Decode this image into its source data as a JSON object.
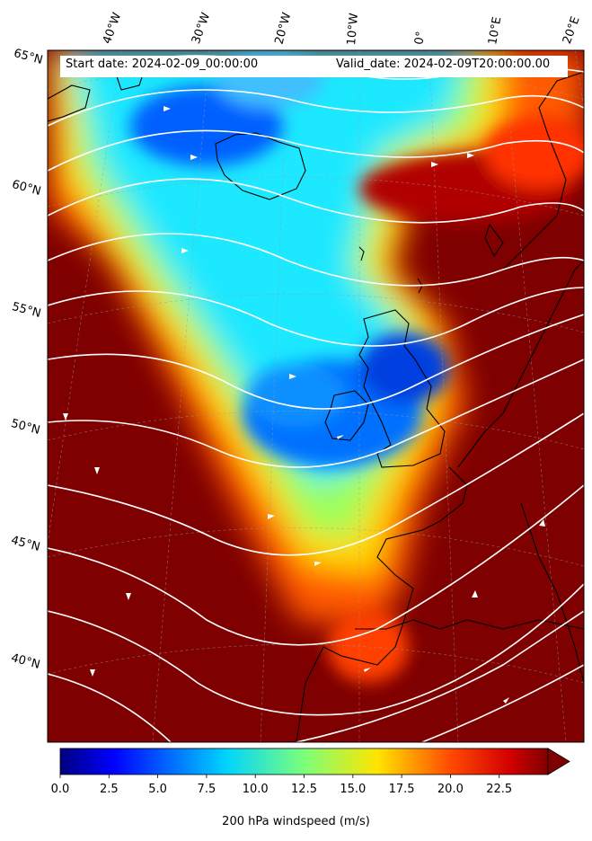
{
  "map": {
    "start_label": "Start date: 2024-02-09_00:00:00",
    "valid_label": "Valid_date: 2024-02-09T20:00:00.00",
    "colorbar_label": "200 hPa windspeed (m/s)",
    "colorbar_ticks": [
      "0.0",
      "2.5",
      "5.0",
      "7.5",
      "10.0",
      "12.5",
      "15.0",
      "17.5",
      "20.0",
      "22.5"
    ],
    "colorbar_range": [
      0,
      25
    ],
    "colormap": "jet",
    "extend": "max",
    "lon_labels": [
      "40°W",
      "30°W",
      "20°W",
      "10°W",
      "0°",
      "10°E",
      "20°E"
    ],
    "lat_labels": [
      "65°N",
      "60°N",
      "55°N",
      "50°N",
      "45°N",
      "40°N"
    ],
    "streamline_color": "#ffffff",
    "coastline_color": "#000000",
    "grid_color": "#9a9a9a"
  }
}
